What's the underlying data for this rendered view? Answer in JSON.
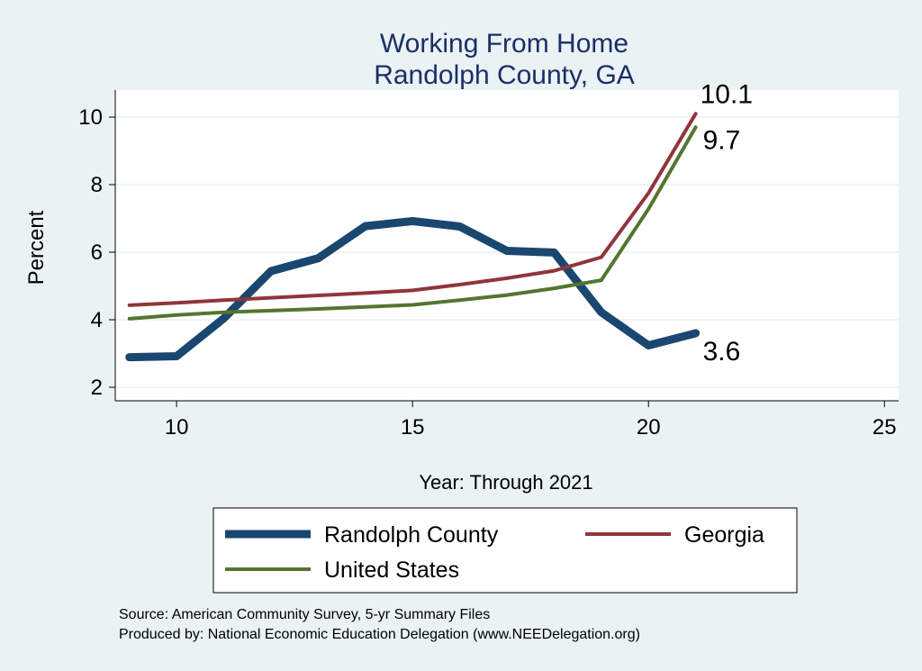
{
  "chart_data": {
    "type": "line",
    "title": "Working From Home",
    "subtitle": "Randolph County, GA",
    "xlabel": "Year: Through 2021",
    "ylabel": "Percent",
    "xlim": [
      8.7,
      25.3
    ],
    "ylim": [
      1.6,
      10.8
    ],
    "xticks": [
      10,
      15,
      20,
      25
    ],
    "yticks": [
      2,
      4,
      6,
      8,
      10
    ],
    "grid": true,
    "legend_placement": "bottom",
    "x": [
      9,
      10,
      11,
      12,
      13,
      14,
      15,
      16,
      17,
      18,
      19,
      20,
      21
    ],
    "series": [
      {
        "name": "Randolph County",
        "color": "#1a476f",
        "width": 9,
        "values": [
          2.89,
          2.92,
          4.04,
          5.44,
          5.82,
          6.77,
          6.92,
          6.76,
          6.04,
          5.99,
          4.22,
          3.24,
          3.6
        ],
        "end_label": "3.6"
      },
      {
        "name": "Georgia",
        "color": "#90353b",
        "width": 4,
        "values": [
          4.43,
          4.5,
          4.58,
          4.65,
          4.72,
          4.79,
          4.87,
          5.04,
          5.23,
          5.45,
          5.85,
          7.75,
          10.1
        ],
        "end_label": "10.1"
      },
      {
        "name": "United States",
        "color": "#55752f",
        "width": 4,
        "values": [
          4.03,
          4.14,
          4.22,
          4.27,
          4.32,
          4.38,
          4.44,
          4.58,
          4.73,
          4.93,
          5.17,
          7.28,
          9.7
        ],
        "end_label": "9.7"
      }
    ],
    "notes": [
      "Source: American Community Survey, 5-yr Summary Files",
      "Produced by: National Economic Education Delegation (www.NEEDelegation.org)"
    ]
  }
}
